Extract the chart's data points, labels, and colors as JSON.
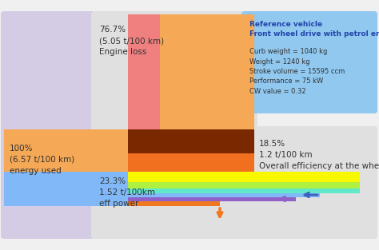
{
  "bg_color": "#f0f0f0",
  "left_panel_color": "#d4cce4",
  "top_mid_panel_color": "#e0e0e0",
  "bot_mid_panel_color": "#e0e0e0",
  "bot_right_panel_color": "#e0e0e0",
  "info_box_color": "#90c8f0",
  "info_box_title_color": "#2244aa",
  "left_label": "100%\n(6.57 t/100 km)\nenergy used",
  "top_label": "76.7%\n(5.05 t/100 km)\nEngine loss",
  "bot_label": "23.3%\n1.52 t/100km\neff power",
  "right_label": "18.5%\n1.2 t/100 km\nOverall efficiency at the wheel",
  "info_title": "Reference vehicle\nFront wheel drive with petrol engine",
  "info_lines": "Curb weight = 1040 kg\nWeight = 1240 kg\nStroke volume = 15595 ccm\nPerformance = 75 kW\nCW value = 0.32",
  "flow_colors": {
    "orange_big": "#f5a855",
    "salmon": "#f08080",
    "brown": "#7a2800",
    "orange_mid": "#f07020",
    "yellow": "#f8f800",
    "green_light": "#b0f040",
    "cyan": "#60e8c8",
    "blue_light": "#80b8f8",
    "purple": "#9060c8",
    "orange_arrow": "#f07820",
    "purple_arrow": "#9060c8",
    "blue_arrow": "#4060c0"
  }
}
